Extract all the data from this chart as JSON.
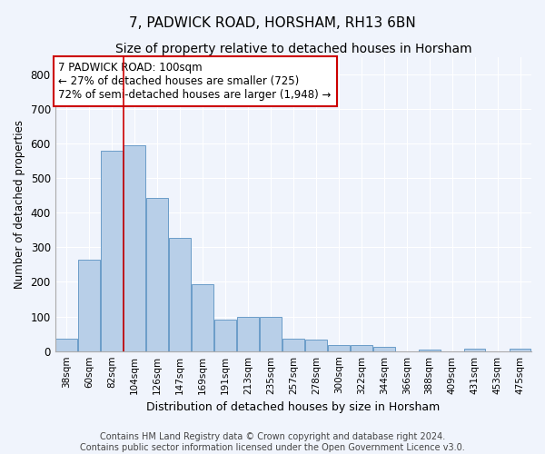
{
  "title": "7, PADWICK ROAD, HORSHAM, RH13 6BN",
  "subtitle": "Size of property relative to detached houses in Horsham",
  "xlabel": "Distribution of detached houses by size in Horsham",
  "ylabel": "Number of detached properties",
  "categories": [
    "38sqm",
    "60sqm",
    "82sqm",
    "104sqm",
    "126sqm",
    "147sqm",
    "169sqm",
    "191sqm",
    "213sqm",
    "235sqm",
    "257sqm",
    "278sqm",
    "300sqm",
    "322sqm",
    "344sqm",
    "366sqm",
    "388sqm",
    "409sqm",
    "431sqm",
    "453sqm",
    "475sqm"
  ],
  "values": [
    35,
    263,
    578,
    595,
    443,
    327,
    193,
    90,
    100,
    100,
    35,
    32,
    17,
    17,
    12,
    0,
    5,
    0,
    7,
    0,
    7
  ],
  "bar_color": "#b8cfe8",
  "bar_edge_color": "#6a9cc8",
  "vline_x_index": 3,
  "vline_color": "#cc0000",
  "annotation_text": "7 PADWICK ROAD: 100sqm\n← 27% of detached houses are smaller (725)\n72% of semi-detached houses are larger (1,948) →",
  "annotation_box_color": "#ffffff",
  "annotation_box_edge_color": "#cc0000",
  "ylim": [
    0,
    850
  ],
  "yticks": [
    0,
    100,
    200,
    300,
    400,
    500,
    600,
    700,
    800
  ],
  "footer": "Contains HM Land Registry data © Crown copyright and database right 2024.\nContains public sector information licensed under the Open Government Licence v3.0.",
  "background_color": "#f0f4fc",
  "plot_background_color": "#f0f4fc",
  "grid_color": "#ffffff",
  "title_fontsize": 11,
  "subtitle_fontsize": 10,
  "annotation_fontsize": 8.5,
  "footer_fontsize": 7
}
